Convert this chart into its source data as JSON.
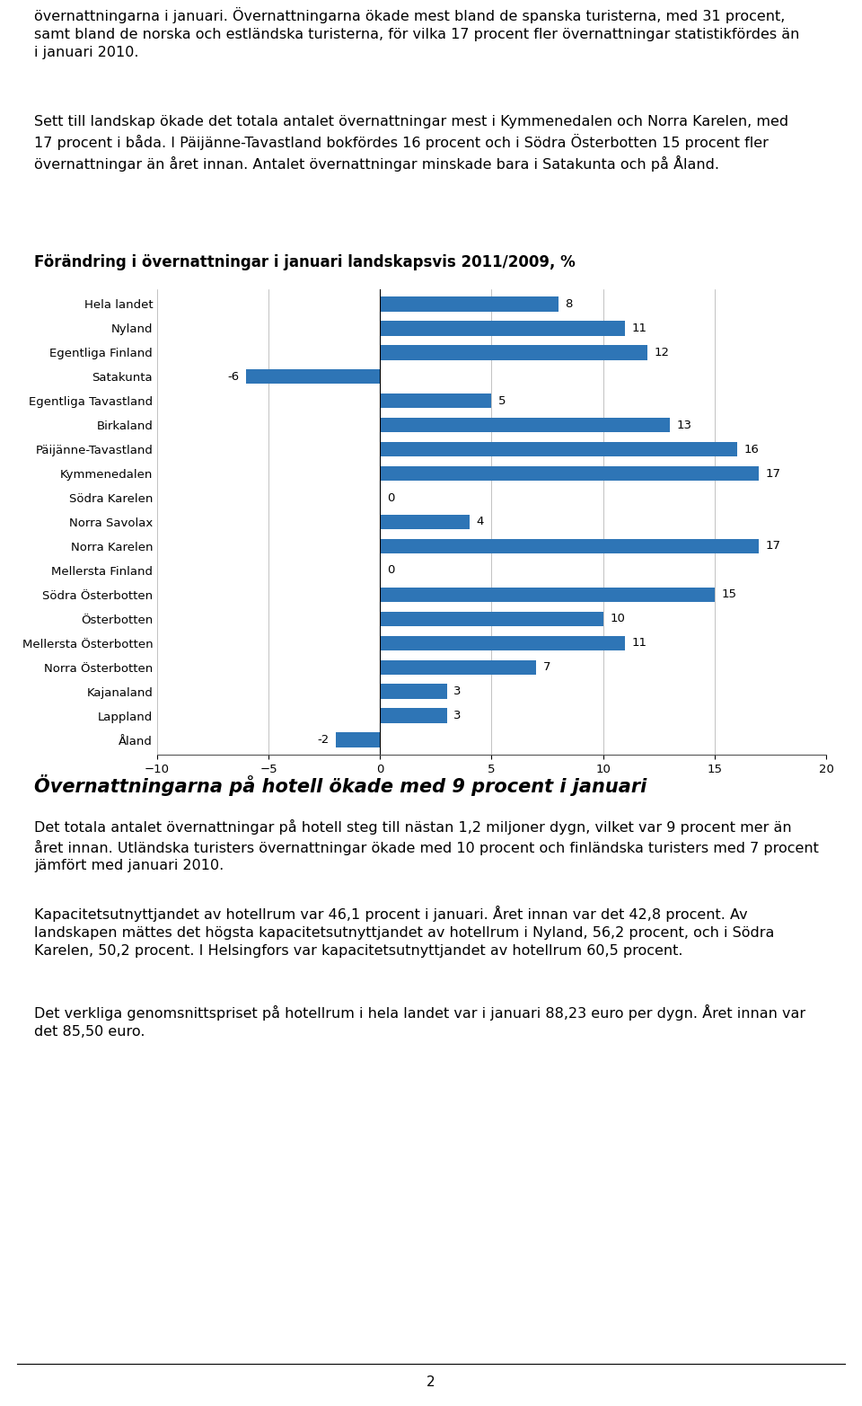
{
  "categories": [
    "Hela landet",
    "Nyland",
    "Egentliga Finland",
    "Satakunta",
    "Egentliga Tavastland",
    "Birkaland",
    "Päijänne-Tavastland",
    "Kymmenedalen",
    "Södra Karelen",
    "Norra Savolax",
    "Norra Karelen",
    "Mellersta Finland",
    "Södra Österbotten",
    "Österbotten",
    "Mellersta Österbotten",
    "Norra Österbotten",
    "Kajanaland",
    "Lappland",
    "Åland"
  ],
  "values": [
    8,
    11,
    12,
    -6,
    5,
    13,
    16,
    17,
    0,
    4,
    17,
    0,
    15,
    10,
    11,
    7,
    3,
    3,
    -2
  ],
  "bar_color": "#2E75B6",
  "chart_title": "Förändring i övernattningar i januari landskapsvis 2011/2009, %",
  "xlim": [
    -10,
    20
  ],
  "xticks": [
    -10,
    -5,
    0,
    5,
    10,
    15,
    20
  ],
  "text_block_1": "övernattningarna i januari. Övernattningarna ökade mest bland de spanska turisterna, med 31 procent,\nsamt bland de norska och estländska turisterna, för vilka 17 procent fler övernattningar statistikfördes än\ni januari 2010.",
  "text_block_2": "Sett till landskap ökade det totala antalet övernattningar mest i Kymmenedalen och Norra Karelen, med\n17 procent i båda. I Päijänne-Tavastland bokfördes 16 procent och i Södra Österbotten 15 procent fler\növernattningar än året innan. Antalet övernattningar minskade bara i Satakunta och på Åland.",
  "chart_title_bold": "Förändring i övernattningar i januari landskapsvis 2011/2009, %",
  "section_title_2": "Övernattningarna på hotell ökade med 9 procent i januari",
  "text_block_3": "Det totala antalet övernattningar på hotell steg till nästan 1,2 miljoner dygn, vilket var 9 procent mer än\nåret innan. Utländska turisters övernattningar ökade med 10 procent och finländska turisters med 7 procent\njämfört med januari 2010.",
  "text_block_4": "Kapacitetsutnyttjandet av hotellrum var 46,1 procent i januari. Året innan var det 42,8 procent. Av\nlandskapen mättes det högsta kapacitetsutnyttjandet av hotellrum i Nyland, 56,2 procent, och i Södra\nKarelen, 50,2 procent. I Helsingfors var kapacitetsutnyttjandet av hotellrum 60,5 procent.",
  "text_block_5": "Det verkliga genomsnittspriset på hotellrum i hela landet var i januari 88,23 euro per dygn. Året innan var\ndet 85,50 euro.",
  "footer_text": "2",
  "body_font_size": 11.5,
  "chart_title_fontsize": 12,
  "section2_font_size": 15
}
